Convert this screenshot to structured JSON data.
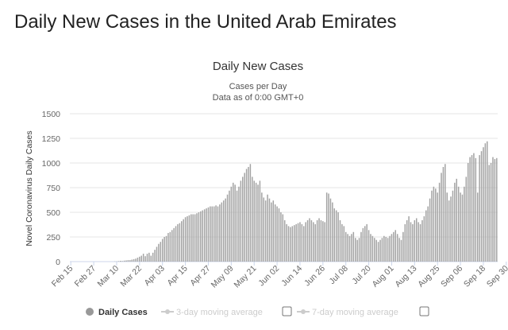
{
  "page": {
    "heading": "Daily New Cases in the United Arab Emirates"
  },
  "colors": {
    "bar": "#a3a3a3",
    "grid": "#e6e6e6",
    "legend_inactive": "#cccccc"
  },
  "chart_data": {
    "type": "bar",
    "title": "Daily New Cases",
    "subtitle_lines": [
      "Cases per Day",
      "Data as of 0:00 GMT+0"
    ],
    "ylabel": "Novel Coronavirus Daily Cases",
    "xlabel": "",
    "ylim": [
      0,
      1500
    ],
    "yticks": [
      0,
      250,
      500,
      750,
      1000,
      1250,
      1500
    ],
    "grid": true,
    "x_tick_labels": [
      "Feb 15",
      "Feb 27",
      "Mar 10",
      "Mar 22",
      "Apr 03",
      "Apr 15",
      "Apr 27",
      "May 09",
      "May 21",
      "Jun 02",
      "Jun 14",
      "Jun 26",
      "Jul 08",
      "Jul 20",
      "Aug 01",
      "Aug 13",
      "Aug 25",
      "Sep 06",
      "Sep 18",
      "Sep 30"
    ],
    "x_start": "Feb 15",
    "categories_note": "one bar per day starting Feb 15",
    "values": [
      0,
      0,
      0,
      0,
      0,
      0,
      0,
      0,
      0,
      0,
      0,
      0,
      0,
      0,
      0,
      0,
      0,
      0,
      0,
      0,
      0,
      0,
      0,
      2,
      2,
      5,
      8,
      6,
      10,
      12,
      15,
      15,
      20,
      25,
      30,
      40,
      50,
      60,
      80,
      55,
      80,
      90,
      60,
      90,
      120,
      150,
      180,
      200,
      230,
      250,
      260,
      290,
      300,
      320,
      340,
      360,
      380,
      390,
      410,
      430,
      450,
      460,
      470,
      480,
      480,
      480,
      490,
      500,
      510,
      520,
      530,
      540,
      550,
      560,
      560,
      560,
      570,
      560,
      580,
      600,
      620,
      640,
      680,
      720,
      760,
      800,
      780,
      720,
      760,
      820,
      860,
      900,
      940,
      960,
      990,
      860,
      820,
      800,
      780,
      820,
      700,
      650,
      620,
      680,
      640,
      600,
      620,
      580,
      560,
      540,
      500,
      480,
      420,
      380,
      360,
      350,
      360,
      370,
      380,
      390,
      400,
      380,
      360,
      400,
      420,
      440,
      420,
      400,
      380,
      420,
      440,
      420,
      410,
      400,
      700,
      690,
      640,
      600,
      540,
      520,
      500,
      420,
      380,
      360,
      300,
      280,
      260,
      280,
      300,
      240,
      220,
      240,
      300,
      340,
      360,
      380,
      320,
      280,
      260,
      240,
      220,
      200,
      220,
      240,
      260,
      250,
      240,
      260,
      280,
      300,
      320,
      280,
      240,
      220,
      300,
      380,
      420,
      460,
      400,
      380,
      420,
      440,
      400,
      380,
      420,
      460,
      520,
      560,
      640,
      720,
      760,
      740,
      700,
      800,
      900,
      960,
      990,
      700,
      620,
      660,
      720,
      800,
      840,
      760,
      700,
      680,
      760,
      860,
      1000,
      1060,
      1080,
      1100,
      1050,
      700,
      1080,
      1120,
      1160,
      1200,
      1220,
      980,
      1000,
      1060,
      1040,
      1050
    ]
  },
  "legend": {
    "items": [
      {
        "label": "Daily Cases",
        "active": true
      },
      {
        "label": "3-day moving average",
        "active": false
      },
      {
        "label": "7-day moving average",
        "active": false
      }
    ]
  }
}
